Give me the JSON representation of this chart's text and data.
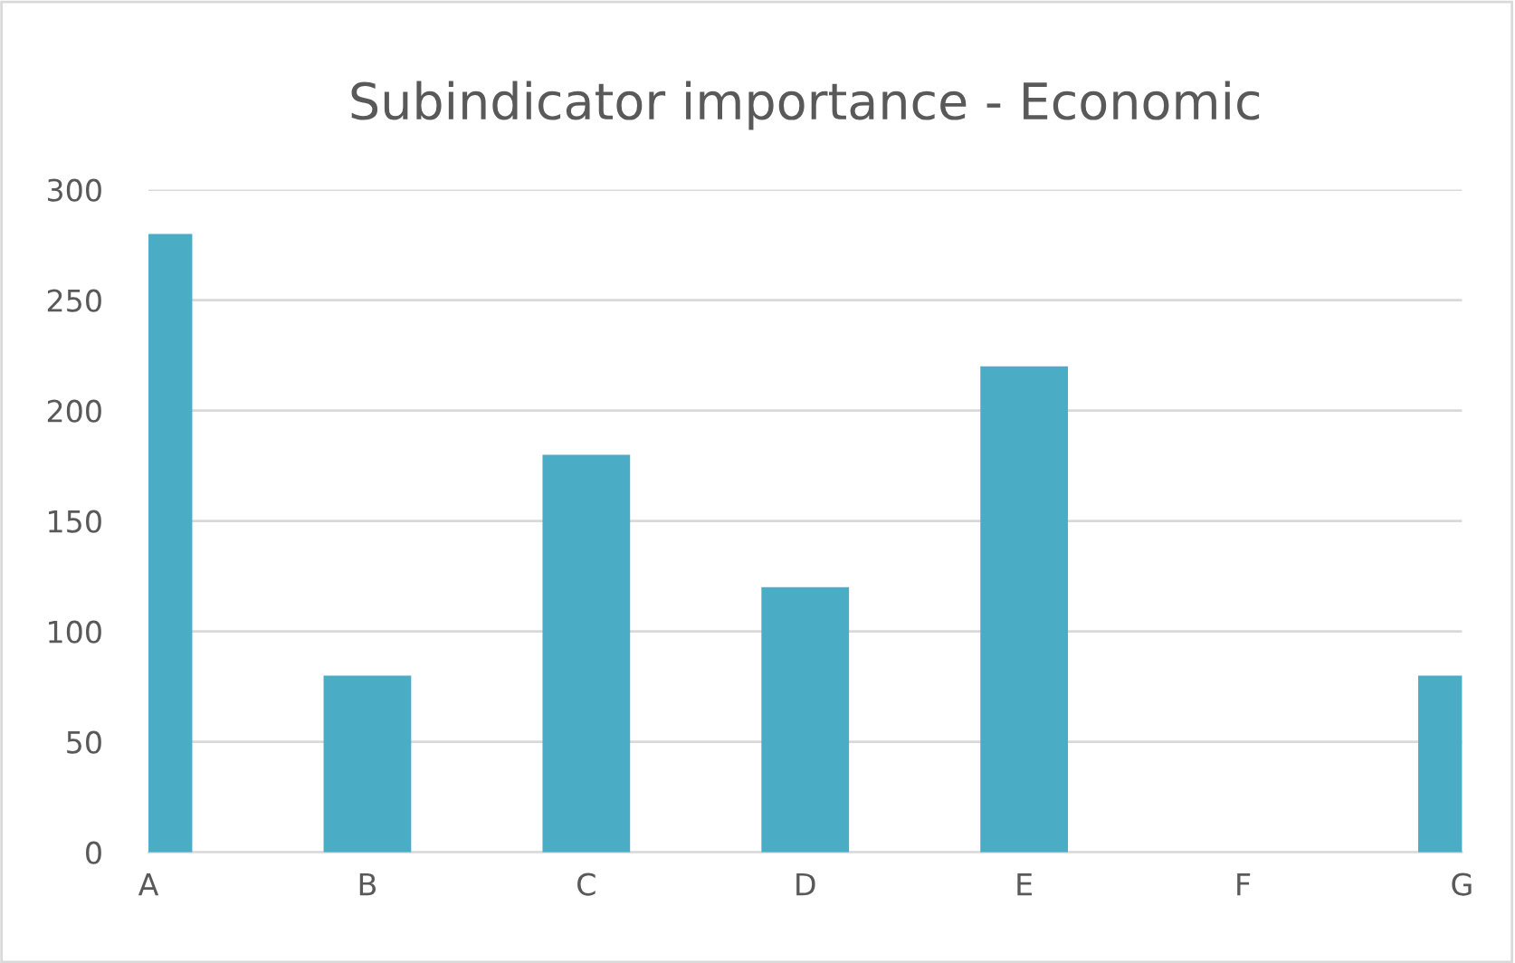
{
  "chart_data": {
    "type": "bar",
    "title": "Subindicator importance - Economic",
    "categories": [
      "A",
      "B",
      "C",
      "D",
      "E",
      "F",
      "G"
    ],
    "values": [
      280,
      80,
      180,
      120,
      220,
      0,
      80
    ],
    "color": "#4bacc6",
    "ylim": [
      0,
      300
    ],
    "yticks": [
      0,
      50,
      100,
      150,
      200,
      250,
      300
    ],
    "grid": "y"
  }
}
